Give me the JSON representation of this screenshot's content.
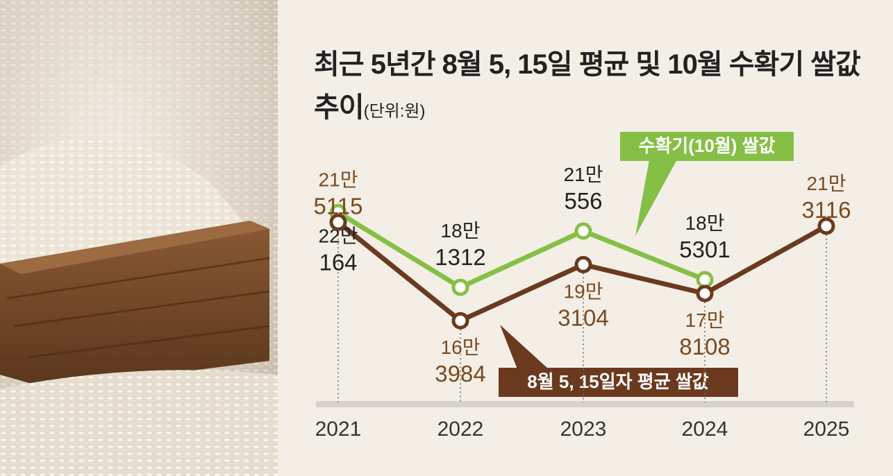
{
  "chart_data": {
    "type": "line",
    "title": "최근 5년간 8월 5, 15일 평균 및 10월 수확기 쌀값 추이",
    "unit": "(단위:원)",
    "categories": [
      "2021",
      "2022",
      "2023",
      "2024",
      "2025"
    ],
    "ylim": [
      150000,
      230000
    ],
    "series": [
      {
        "name": "8월 5, 15일자 평균 쌀값",
        "color": "#6b3a1e",
        "values": [
          215115,
          163984,
          193104,
          178108,
          213116
        ],
        "value_labels": [
          "21만 5115",
          "16만 3984",
          "19만 3104",
          "17만 8108",
          "21만 3116"
        ]
      },
      {
        "name": "수확기(10월) 쌀값",
        "color": "#86bf45",
        "values": [
          220164,
          181312,
          210556,
          185301,
          null
        ],
        "value_labels": [
          "22만 164",
          "18만 1312",
          "21만 556",
          "18만 5301",
          null
        ]
      }
    ]
  }
}
